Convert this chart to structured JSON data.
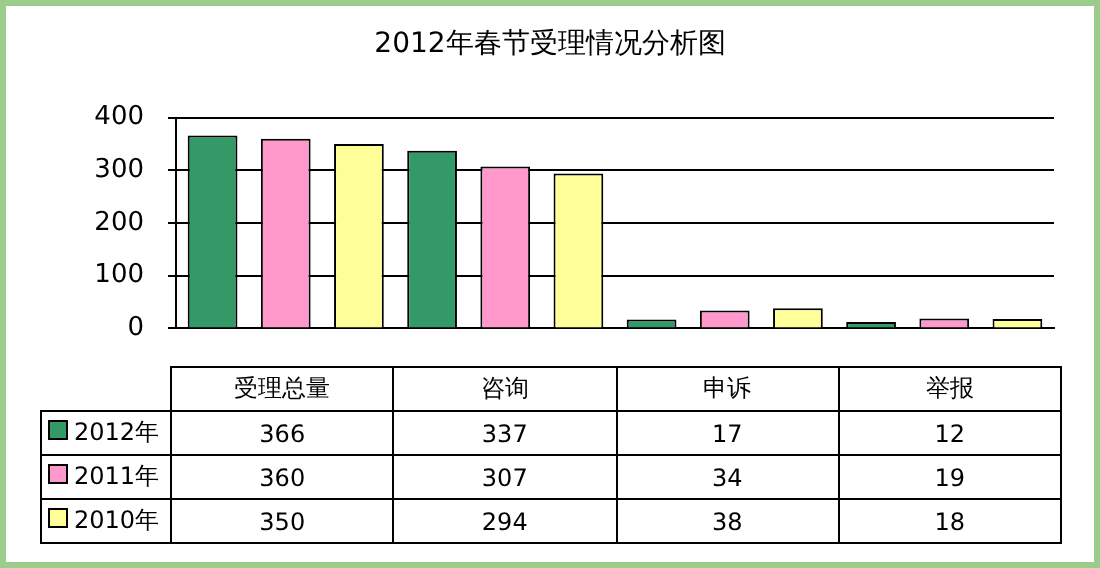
{
  "chart_data": {
    "type": "bar",
    "title": "2012年春节受理情况分析图",
    "categories": [
      "受理总量",
      "咨询",
      "申诉",
      "举报"
    ],
    "series": [
      {
        "name": "2012年",
        "color": "#339966",
        "values": [
          366,
          337,
          17,
          12
        ]
      },
      {
        "name": "2011年",
        "color": "#ff99cc",
        "values": [
          360,
          307,
          34,
          19
        ]
      },
      {
        "name": "2010年",
        "color": "#ffff99",
        "values": [
          350,
          294,
          38,
          18
        ]
      }
    ],
    "ylim": [
      0,
      400
    ],
    "yticks": [
      0,
      100,
      200,
      300,
      400
    ],
    "grid": "y",
    "legend": "bottom",
    "data_labels": true
  }
}
